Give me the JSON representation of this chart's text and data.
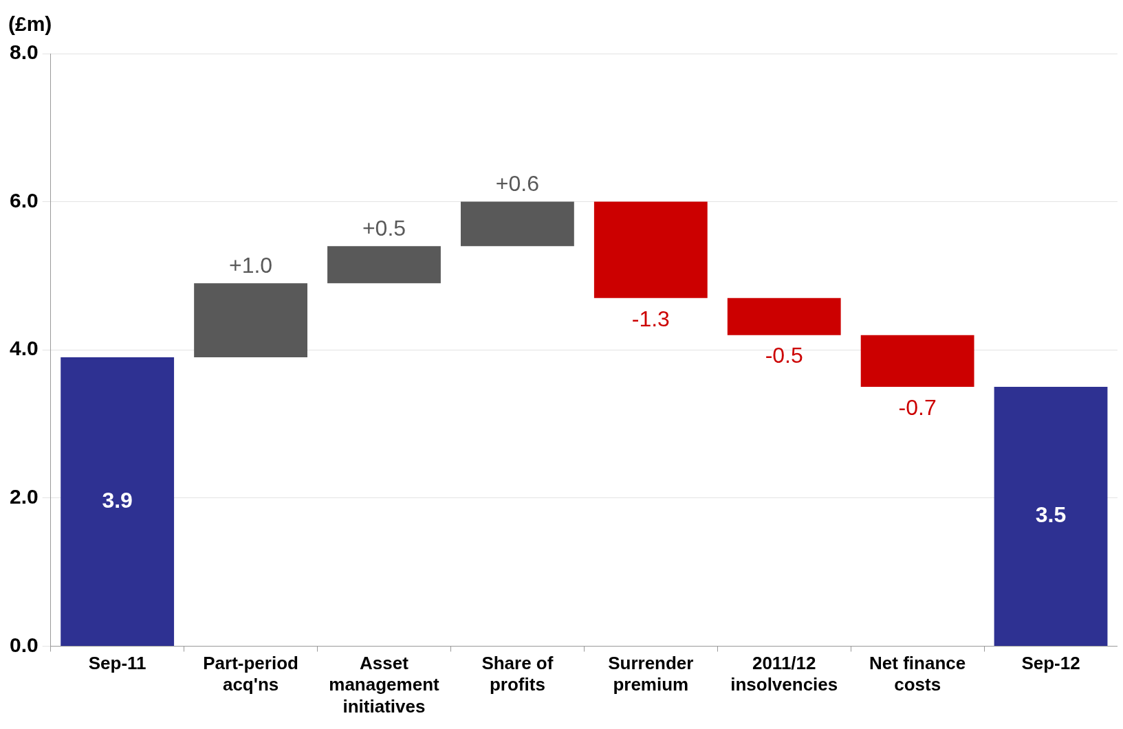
{
  "chart_data": {
    "type": "bar",
    "ylabel": "(£m)",
    "categories": [
      "Sep-11",
      "Part-period acq'ns",
      "Asset management initiatives",
      "Share of profits",
      "Surrender premium",
      "2011/12 insolvencies",
      "Net finance costs",
      "Sep-12"
    ],
    "values": [
      3.9,
      1.0,
      0.5,
      0.6,
      -1.3,
      -0.5,
      -0.7,
      3.5
    ],
    "base": [
      0,
      3.9,
      4.9,
      5.4,
      6.0,
      4.7,
      4.2,
      0
    ],
    "colors": [
      "#2e3192",
      "#595959",
      "#595959",
      "#595959",
      "#cc0000",
      "#cc0000",
      "#cc0000",
      "#2e3192"
    ],
    "value_labels": [
      "3.9",
      "+1.0",
      "+0.5",
      "+0.6",
      "-1.3",
      "-0.5",
      "-0.7",
      "3.5"
    ],
    "ylim": [
      0,
      8
    ],
    "yticks": [
      {
        "value": 0,
        "label": "0.0"
      },
      {
        "value": 2,
        "label": "2.0"
      },
      {
        "value": 4,
        "label": "4.0"
      },
      {
        "value": 6,
        "label": "6.0"
      },
      {
        "value": 8,
        "label": "8.0"
      }
    ],
    "grid": "y",
    "legend": false
  }
}
